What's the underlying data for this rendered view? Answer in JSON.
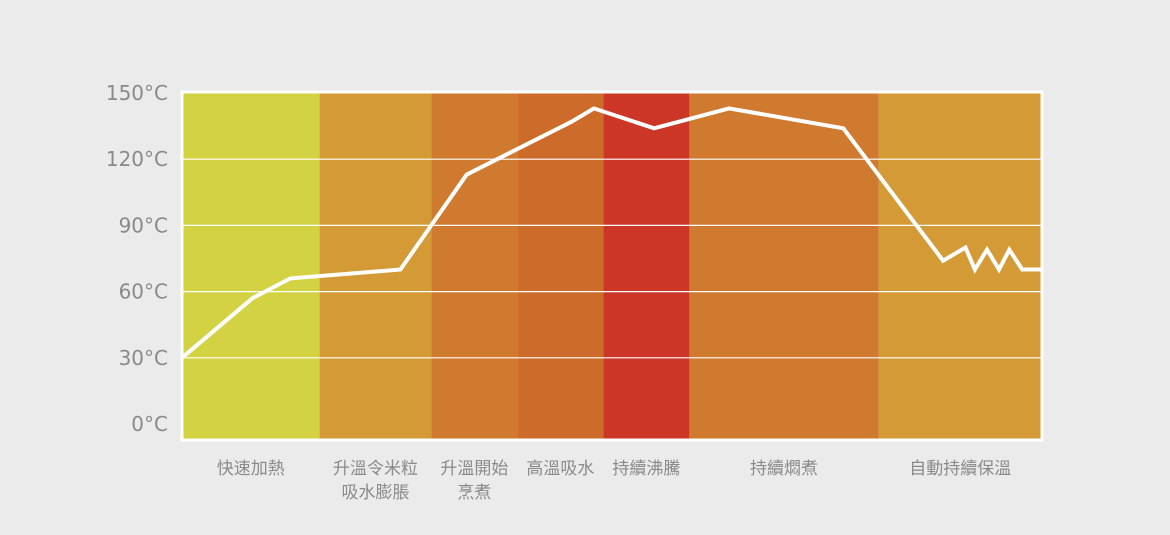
{
  "chart_data": {
    "type": "line",
    "title": "",
    "xlabel": "",
    "ylabel": "",
    "ylim": [
      0,
      150
    ],
    "y_ticks": [
      "0°C",
      "30°C",
      "60°C",
      "90°C",
      "120°C",
      "150°C"
    ],
    "grid": true,
    "legend": "none",
    "stages": [
      {
        "label_lines": [
          "快速加熱"
        ],
        "range": [
          0,
          16
        ],
        "color": "#d3d242"
      },
      {
        "label_lines": [
          "升溫令米粒",
          "吸水膨脹"
        ],
        "range": [
          16,
          29
        ],
        "color": "#d39a36"
      },
      {
        "label_lines": [
          "升溫開始",
          "烹煮"
        ],
        "range": [
          29,
          39
        ],
        "color": "#cf7a2e"
      },
      {
        "label_lines": [
          "高溫吸水"
        ],
        "range": [
          39,
          49
        ],
        "color": "#cd6b2b"
      },
      {
        "label_lines": [
          "持續沸騰"
        ],
        "range": [
          49,
          59
        ],
        "color": "#cc3626"
      },
      {
        "label_lines": [
          "持續燜煮"
        ],
        "range": [
          59,
          81
        ],
        "color": "#cf7a2e"
      },
      {
        "label_lines": [
          "自動持續保溫"
        ],
        "range": [
          81,
          100
        ],
        "color": "#d39a36"
      }
    ],
    "series": [
      {
        "values": [
          [
            0,
            30
          ],
          [
            8.2,
            57
          ],
          [
            12.6,
            66
          ],
          [
            25.4,
            70
          ],
          [
            33.1,
            113
          ],
          [
            45.3,
            137
          ],
          [
            47.9,
            143
          ],
          [
            54.9,
            134
          ],
          [
            63.6,
            143
          ],
          [
            76.9,
            134
          ],
          [
            88.5,
            74
          ],
          [
            91.1,
            80
          ],
          [
            92.2,
            70
          ],
          [
            93.6,
            79
          ],
          [
            95.0,
            70
          ],
          [
            96.2,
            79
          ],
          [
            97.7,
            70
          ],
          [
            100,
            70
          ]
        ]
      }
    ],
    "colors": {
      "line": "#ffffff",
      "grid": "#ffffff",
      "frame": "#ffffff",
      "background": "#ebebeb",
      "tick_text": "#8a8a8a"
    }
  }
}
